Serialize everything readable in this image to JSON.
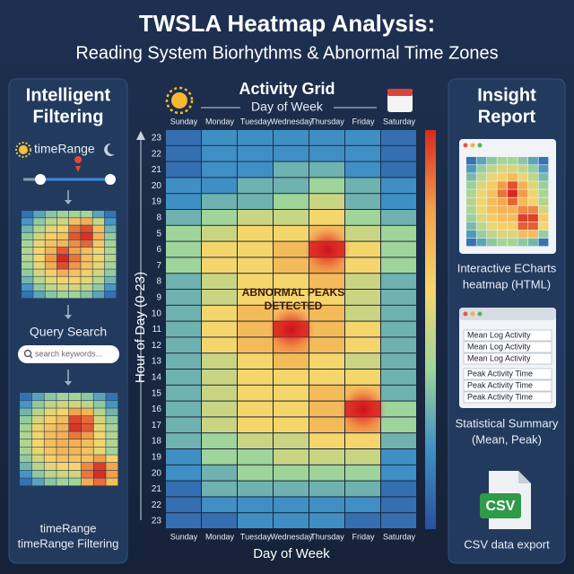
{
  "header": {
    "title": "TWSLA Heatmap Analysis:",
    "subtitle": "Reading System Biorhythms & Abnormal Time Zones"
  },
  "left_panel": {
    "title_lines": [
      "Intelligent",
      "Filtering"
    ],
    "time_range_label": "timeRange",
    "query_label": "Query Search",
    "search_placeholder": "search keywords...",
    "footer_lines": [
      "timeRange",
      "timeRange Filtering"
    ]
  },
  "chart_data": {
    "type": "heatmap",
    "title": "Activity Grid",
    "subtitle": "Day of Week",
    "x_label": "Day of Week",
    "y_label": "Hour of Day (0-23)",
    "categories": [
      "Sunday",
      "Monday",
      "Tuesday",
      "Wednesday",
      "Thursday",
      "Friday",
      "Saturday"
    ],
    "rows": [
      "23",
      "22",
      "21",
      "20",
      "19",
      "8",
      "5",
      "6",
      "7",
      "8",
      "9",
      "10",
      "11",
      "12",
      "13",
      "14",
      "15",
      "16",
      "17",
      "18",
      "19",
      "20",
      "21",
      "22",
      "23"
    ],
    "values": [
      [
        1,
        2,
        2,
        2,
        2,
        2,
        1
      ],
      [
        1,
        2,
        2,
        2,
        2,
        2,
        1
      ],
      [
        1,
        2,
        2,
        3,
        3,
        2,
        1
      ],
      [
        2,
        2,
        3,
        3,
        4,
        3,
        2
      ],
      [
        2,
        3,
        3,
        4,
        5,
        3,
        2
      ],
      [
        3,
        4,
        5,
        5,
        6,
        4,
        3
      ],
      [
        4,
        5,
        6,
        6,
        7,
        5,
        4
      ],
      [
        4,
        6,
        6,
        7,
        10,
        6,
        4
      ],
      [
        4,
        6,
        6,
        7,
        8,
        6,
        4
      ],
      [
        3,
        5,
        6,
        6,
        7,
        5,
        3
      ],
      [
        3,
        5,
        6,
        6,
        6,
        5,
        3
      ],
      [
        3,
        6,
        7,
        7,
        7,
        5,
        3
      ],
      [
        3,
        6,
        7,
        10,
        7,
        6,
        3
      ],
      [
        3,
        6,
        7,
        8,
        7,
        6,
        3
      ],
      [
        3,
        5,
        6,
        7,
        6,
        5,
        3
      ],
      [
        3,
        5,
        6,
        6,
        6,
        6,
        3
      ],
      [
        3,
        5,
        6,
        6,
        7,
        7,
        3
      ],
      [
        3,
        5,
        6,
        6,
        7,
        10,
        4
      ],
      [
        3,
        5,
        6,
        6,
        7,
        8,
        4
      ],
      [
        3,
        4,
        5,
        5,
        6,
        6,
        3
      ],
      [
        2,
        4,
        4,
        5,
        5,
        5,
        2
      ],
      [
        2,
        3,
        4,
        4,
        4,
        4,
        2
      ],
      [
        1,
        3,
        3,
        3,
        3,
        3,
        1
      ],
      [
        1,
        2,
        2,
        2,
        2,
        2,
        1
      ],
      [
        1,
        1,
        2,
        2,
        2,
        1,
        1
      ]
    ],
    "zlim": [
      0,
      10
    ],
    "colorscale": [
      "#2b4f9e",
      "#3f8fc4",
      "#9fd49a",
      "#f5d66c",
      "#f3a04a",
      "#d8281e"
    ],
    "annotation_lines": [
      "ABNORMAL PEAKS",
      "DETECTED"
    ]
  },
  "right_panel": {
    "title_lines": [
      "Insight",
      "Report"
    ],
    "echarts_lines": [
      "Interactive ECharts",
      "heatmap (HTML)"
    ],
    "summary_rows": [
      "Mean Log Activity",
      "Mean Log Activity",
      "Mean Log Activity",
      "Peak Activity Time",
      "Peak Activity Time",
      "Peak Activity Time"
    ],
    "summary_lines": [
      "Statistical Summary",
      "(Mean, Peak)"
    ],
    "csv_badge": "CSV",
    "csv_label": "CSV data export"
  }
}
